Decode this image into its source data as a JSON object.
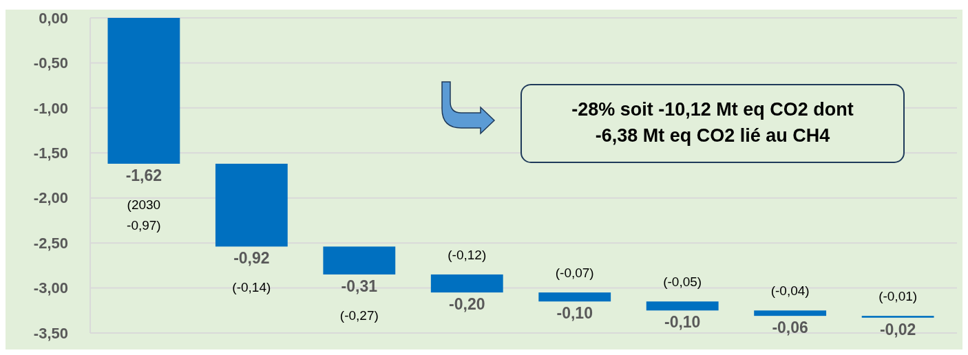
{
  "chart_data": {
    "type": "bar",
    "categories": [
      null,
      null,
      null,
      null,
      null,
      null,
      null,
      null
    ],
    "values": [
      -1.62,
      -0.92,
      -0.31,
      -0.2,
      -0.1,
      -0.1,
      -0.06,
      -0.02
    ],
    "base": [
      0,
      -1.62,
      -2.54,
      -2.85,
      -3.05,
      -3.15,
      -3.25,
      -3.31
    ],
    "color": "#0070c0",
    "value_labels": [
      "-1,62",
      "-0,92",
      "-0,31",
      "-0,20",
      "-0,10",
      "-0,10",
      "-0,06",
      "-0,02"
    ],
    "ylim": [
      -3.5,
      0
    ],
    "yticks": [
      {
        "value": 0,
        "label": "0,00"
      },
      {
        "value": -0.5,
        "label": "-0,50"
      },
      {
        "value": -1,
        "label": "-1,00"
      },
      {
        "value": -1.5,
        "label": "-1,50"
      },
      {
        "value": -2,
        "label": "-2,00"
      },
      {
        "value": -2.5,
        "label": "-2,50"
      },
      {
        "value": -3,
        "label": "-3,00"
      },
      {
        "value": -3.5,
        "label": "-3,50"
      }
    ],
    "grid": "y",
    "annotations": [
      "(2030 -0,97)",
      "(-0,14)",
      "(-0,27)",
      "(-0,12)",
      "(-0,07)",
      "(-0,05)",
      "(-0,04)",
      "(-0,01)",
      "-28% soit -10,12 Mt eq CO2 dont\n-6,38 Mt eq CO2 lié au CH4"
    ]
  }
}
